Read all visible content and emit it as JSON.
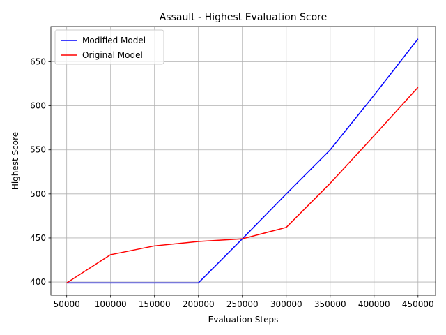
{
  "chart_data": {
    "type": "line",
    "title": "Assault - Highest Evaluation Score",
    "xlabel": "Evaluation Steps",
    "ylabel": "Highest Score",
    "x": [
      50000,
      100000,
      150000,
      200000,
      250000,
      300000,
      350000,
      400000,
      450000
    ],
    "series": [
      {
        "name": "Modified Model",
        "color": "#0000ff",
        "values": [
          399,
          399,
          399,
          399,
          449,
          500,
          550,
          612,
          676
        ]
      },
      {
        "name": "Original Model",
        "color": "#ff0000",
        "values": [
          399,
          431,
          441,
          446,
          449,
          462,
          512,
          566,
          621
        ]
      }
    ],
    "xlim": [
      32000,
      470000
    ],
    "ylim": [
      385,
      690
    ],
    "x_ticks": [
      50000,
      100000,
      150000,
      200000,
      250000,
      300000,
      350000,
      400000,
      450000
    ],
    "y_ticks": [
      400,
      450,
      500,
      550,
      600,
      650
    ],
    "grid": true,
    "legend_position": "upper-left"
  }
}
